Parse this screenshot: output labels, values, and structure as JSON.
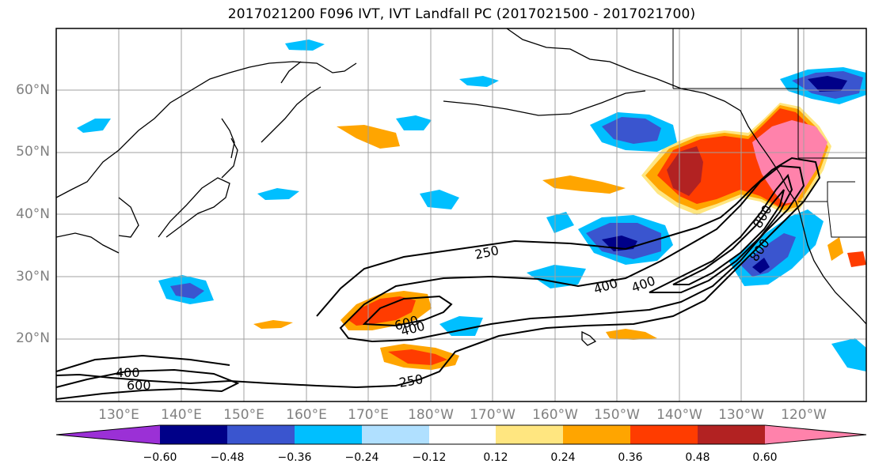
{
  "title": "2017021200 F096 IVT, IVT Landfall PC (2017021500 - 2017021700)",
  "map": {
    "lat_labels": [
      "60°N",
      "50°N",
      "40°N",
      "30°N",
      "20°N"
    ],
    "lon_labels": [
      "130°E",
      "140°E",
      "150°E",
      "160°E",
      "170°E",
      "180°W",
      "170°W",
      "160°W",
      "150°W",
      "140°W",
      "130°W",
      "120°W"
    ],
    "contour_labels": [
      "250",
      "400",
      "400",
      "600",
      "400",
      "800",
      "800",
      "400",
      "600",
      "250"
    ]
  },
  "colorbar": {
    "tick_labels": [
      "−0.60",
      "−0.48",
      "−0.36",
      "−0.24",
      "−0.12",
      "0.12",
      "0.24",
      "0.36",
      "0.48",
      "0.60"
    ],
    "colors": [
      "#9b30d6",
      "#000088",
      "#3a55cf",
      "#00bfff",
      "#b0e0ff",
      "#ffffff",
      "#ffe680",
      "#ffa500",
      "#ff3c00",
      "#b22222",
      "#ff82ab"
    ]
  }
}
